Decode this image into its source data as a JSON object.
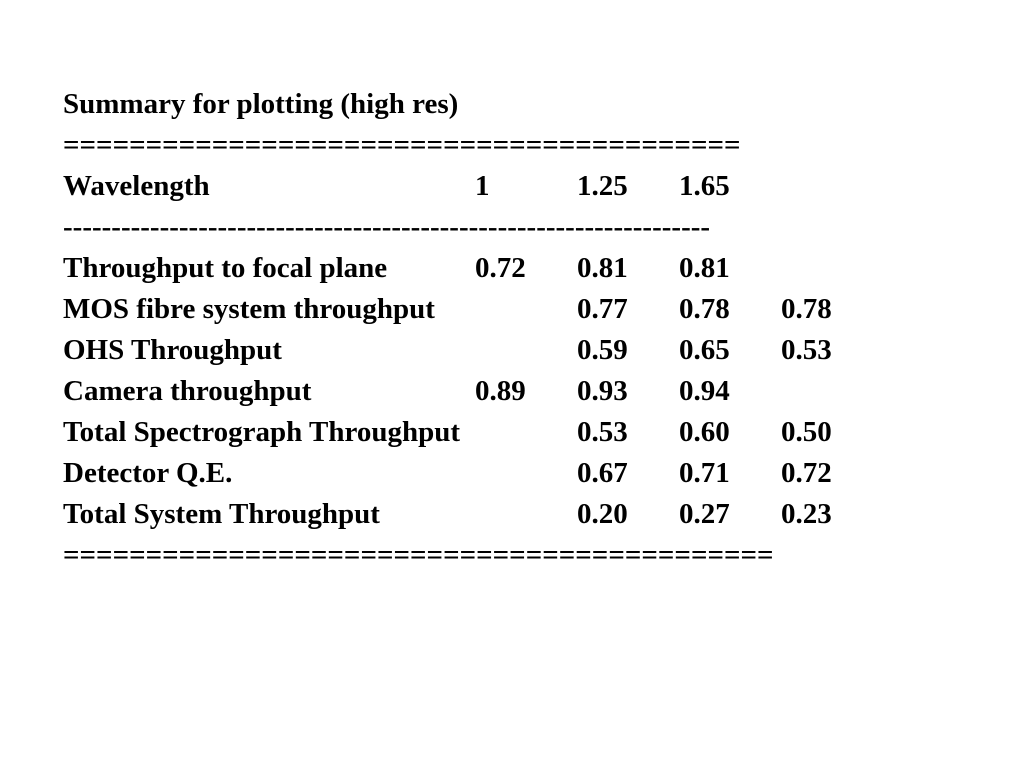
{
  "document": {
    "title": "Summary for plotting (high res)",
    "rule_top": "=========================================",
    "header": {
      "label": "Wavelength",
      "cells": [
        "1",
        "1.25",
        "1.65"
      ]
    },
    "rule_mid": "-------------------------------------------------------------------",
    "rows": [
      {
        "label": "Throughput to focal plane",
        "cells": [
          "0.72",
          "0.81",
          "0.81"
        ]
      },
      {
        "label": "MOS fibre system throughput",
        "cells": [
          null,
          "0.77",
          "0.78",
          "0.78"
        ]
      },
      {
        "label": "OHS Throughput",
        "cells": [
          null,
          "0.59",
          "0.65",
          "0.53"
        ]
      },
      {
        "label": "Camera throughput",
        "cells": [
          "0.89",
          "0.93",
          "0.94"
        ]
      },
      {
        "label": "Total Spectrograph Throughput",
        "cells": [
          null,
          "0.53",
          "0.60",
          "0.50"
        ]
      },
      {
        "label": "Detector Q.E.",
        "cells": [
          null,
          "0.67",
          "0.71",
          "0.72"
        ]
      },
      {
        "label": "Total System Throughput",
        "cells": [
          null,
          "0.20",
          "0.27",
          "0.23"
        ]
      }
    ],
    "rule_bottom": "==========================================="
  }
}
